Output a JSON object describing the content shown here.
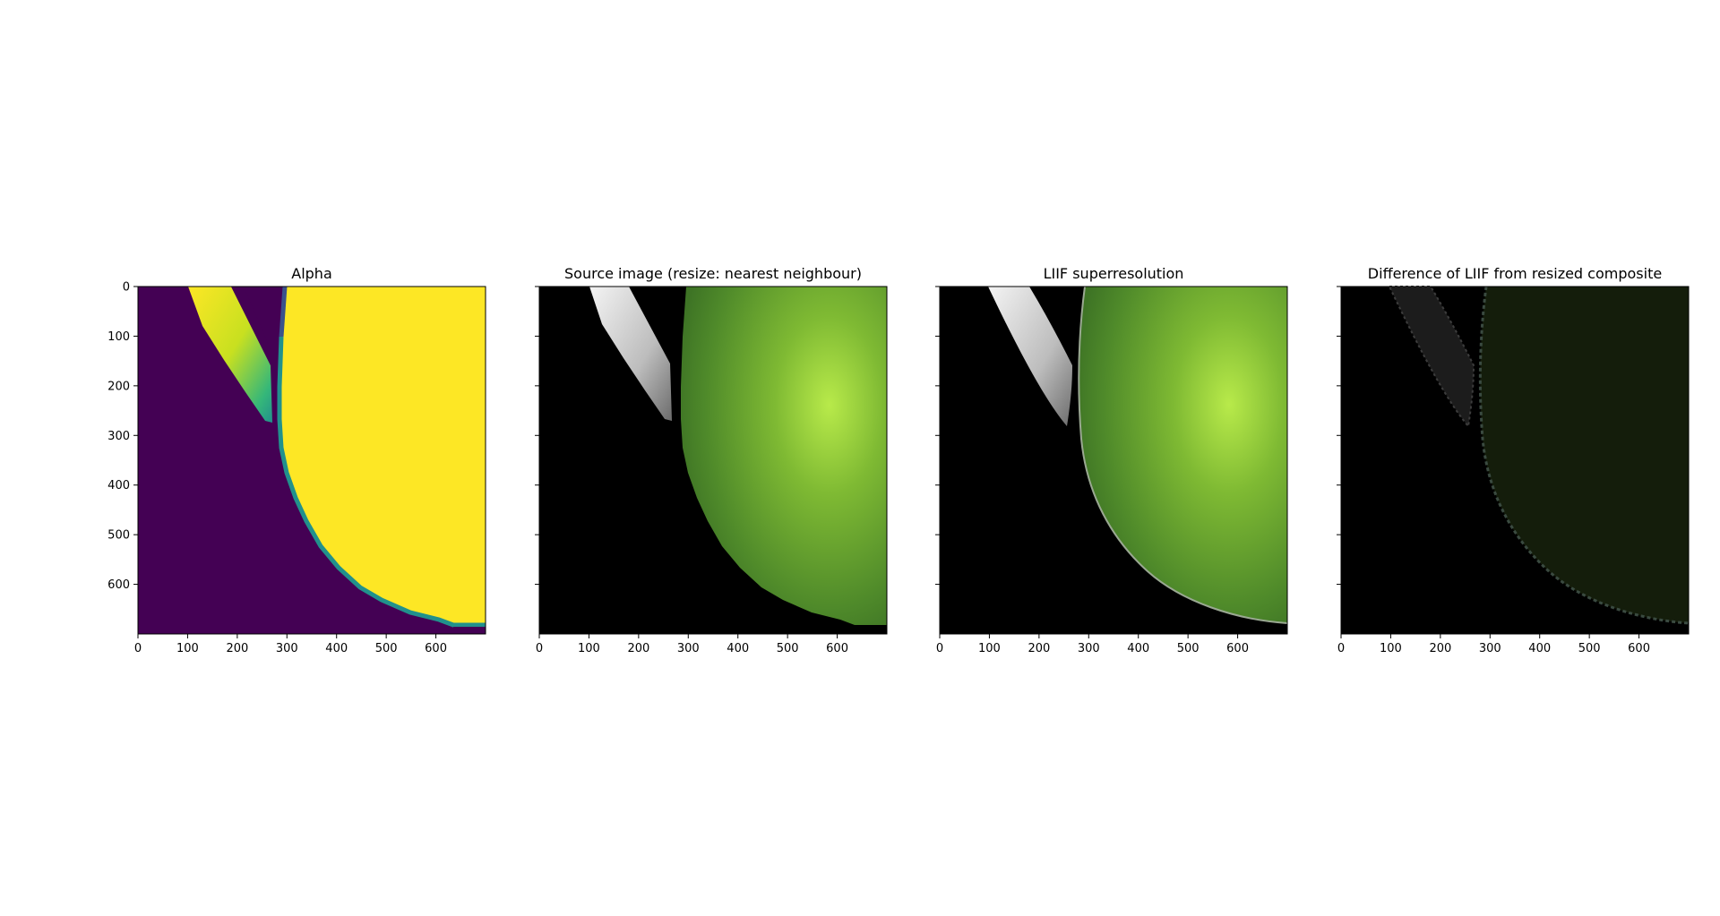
{
  "chart_data": [
    {
      "type": "image",
      "title": "Alpha",
      "colormap": "viridis",
      "x_ticks": [
        0,
        100,
        200,
        300,
        400,
        500,
        600
      ],
      "y_ticks": [
        0,
        100,
        200,
        300,
        400,
        500,
        600
      ],
      "xlim": [
        0,
        700
      ],
      "ylim": [
        700,
        0
      ],
      "grid": false
    },
    {
      "type": "image",
      "title": "Source image (resize: nearest neighbour)",
      "x_ticks": [
        0,
        100,
        200,
        300,
        400,
        500,
        600
      ],
      "xlim": [
        0,
        700
      ],
      "ylim": [
        700,
        0
      ],
      "y_ticklabels_shown": false,
      "grid": false
    },
    {
      "type": "image",
      "title": "LIIF superresolution",
      "x_ticks": [
        0,
        100,
        200,
        300,
        400,
        500,
        600
      ],
      "xlim": [
        0,
        700
      ],
      "ylim": [
        700,
        0
      ],
      "y_ticklabels_shown": false,
      "grid": false
    },
    {
      "type": "image",
      "title": "Difference of LIIF from resized composite",
      "x_ticks": [
        0,
        100,
        200,
        300,
        400,
        500,
        600
      ],
      "xlim": [
        0,
        700
      ],
      "ylim": [
        700,
        0
      ],
      "y_ticklabels_shown": false,
      "grid": false
    }
  ],
  "colors": {
    "viridis_low": "#440154",
    "viridis_high": "#fde725",
    "leaf_green": "#6aa12c",
    "background": "#000000"
  }
}
